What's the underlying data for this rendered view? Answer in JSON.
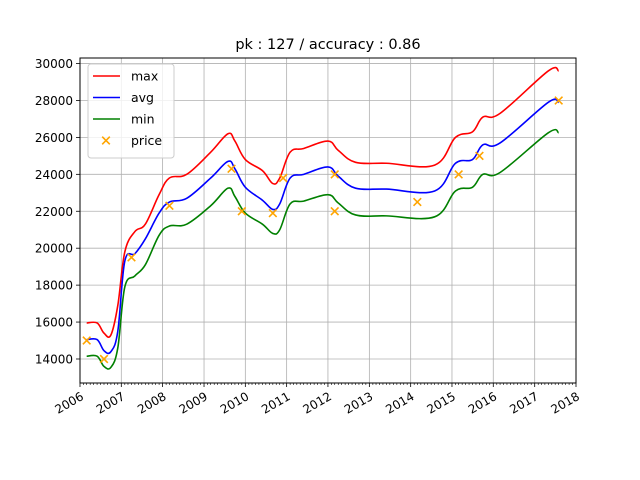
{
  "chart_data": {
    "type": "line",
    "title": "pk : 127 / accuracy : 0.86",
    "xlabel": "",
    "ylabel": "",
    "x_axis": {
      "type": "date",
      "range": [
        "2006-01-01",
        "2018-01-01"
      ],
      "tick_labels": [
        "2006",
        "2007",
        "2008",
        "2009",
        "2010",
        "2011",
        "2012",
        "2013",
        "2014",
        "2015",
        "2016",
        "2017",
        "2018"
      ]
    },
    "y_axis": {
      "range": [
        12700,
        30300
      ],
      "tick_labels": [
        "14000",
        "16000",
        "18000",
        "20000",
        "22000",
        "24000",
        "26000",
        "28000",
        "30000"
      ]
    },
    "grid": true,
    "legend_position": "top-left",
    "colors": {
      "max": "#ff0000",
      "avg": "#0000ff",
      "min": "#008000",
      "price": "#ffa500"
    },
    "series": [
      {
        "name": "max",
        "type": "line",
        "points": [
          [
            "2006-03-01",
            15950
          ],
          [
            "2006-06-01",
            15950
          ],
          [
            "2006-08-01",
            15400
          ],
          [
            "2006-10-01",
            15300
          ],
          [
            "2006-12-01",
            16900
          ],
          [
            "2007-02-01",
            19800
          ],
          [
            "2007-05-01",
            20900
          ],
          [
            "2007-08-01",
            21300
          ],
          [
            "2007-12-01",
            22900
          ],
          [
            "2008-03-01",
            23800
          ],
          [
            "2008-08-01",
            24000
          ],
          [
            "2009-03-01",
            25200
          ],
          [
            "2009-08-01",
            26200
          ],
          [
            "2009-10-01",
            25800
          ],
          [
            "2010-01-01",
            24800
          ],
          [
            "2010-06-01",
            24200
          ],
          [
            "2010-09-01",
            23500
          ],
          [
            "2010-11-01",
            23800
          ],
          [
            "2011-02-01",
            25200
          ],
          [
            "2011-06-01",
            25400
          ],
          [
            "2012-01-01",
            25800
          ],
          [
            "2012-04-01",
            25300
          ],
          [
            "2012-09-01",
            24650
          ],
          [
            "2013-06-01",
            24600
          ],
          [
            "2014-08-01",
            24500
          ],
          [
            "2015-02-01",
            26000
          ],
          [
            "2015-07-01",
            26300
          ],
          [
            "2015-10-01",
            27100
          ],
          [
            "2016-03-01",
            27300
          ],
          [
            "2017-05-01",
            29600
          ],
          [
            "2017-08-01",
            29600
          ]
        ]
      },
      {
        "name": "avg",
        "type": "line",
        "points": [
          [
            "2006-03-01",
            15050
          ],
          [
            "2006-06-01",
            15050
          ],
          [
            "2006-08-01",
            14450
          ],
          [
            "2006-10-01",
            14400
          ],
          [
            "2006-12-01",
            15500
          ],
          [
            "2007-02-01",
            19300
          ],
          [
            "2007-05-01",
            19700
          ],
          [
            "2007-08-01",
            20500
          ],
          [
            "2007-12-01",
            21900
          ],
          [
            "2008-03-01",
            22500
          ],
          [
            "2008-08-01",
            22700
          ],
          [
            "2009-03-01",
            23800
          ],
          [
            "2009-08-01",
            24700
          ],
          [
            "2009-10-01",
            24300
          ],
          [
            "2010-01-01",
            23300
          ],
          [
            "2010-06-01",
            22600
          ],
          [
            "2010-09-01",
            22100
          ],
          [
            "2010-11-01",
            22400
          ],
          [
            "2011-02-01",
            23800
          ],
          [
            "2011-06-01",
            24000
          ],
          [
            "2012-01-01",
            24400
          ],
          [
            "2012-04-01",
            23900
          ],
          [
            "2012-09-01",
            23250
          ],
          [
            "2013-06-01",
            23200
          ],
          [
            "2014-08-01",
            23100
          ],
          [
            "2015-02-01",
            24600
          ],
          [
            "2015-07-01",
            24800
          ],
          [
            "2015-10-01",
            25600
          ],
          [
            "2016-03-01",
            25700
          ],
          [
            "2017-05-01",
            27900
          ],
          [
            "2017-08-01",
            27900
          ]
        ]
      },
      {
        "name": "min",
        "type": "line",
        "points": [
          [
            "2006-03-01",
            14150
          ],
          [
            "2006-06-01",
            14150
          ],
          [
            "2006-08-01",
            13600
          ],
          [
            "2006-10-01",
            13550
          ],
          [
            "2006-12-01",
            14600
          ],
          [
            "2007-02-01",
            17900
          ],
          [
            "2007-05-01",
            18500
          ],
          [
            "2007-08-01",
            19100
          ],
          [
            "2007-12-01",
            20700
          ],
          [
            "2008-03-01",
            21200
          ],
          [
            "2008-08-01",
            21300
          ],
          [
            "2009-03-01",
            22300
          ],
          [
            "2009-08-01",
            23250
          ],
          [
            "2009-10-01",
            22800
          ],
          [
            "2010-01-01",
            21900
          ],
          [
            "2010-06-01",
            21300
          ],
          [
            "2010-09-01",
            20800
          ],
          [
            "2010-11-01",
            21000
          ],
          [
            "2011-02-01",
            22400
          ],
          [
            "2011-06-01",
            22550
          ],
          [
            "2012-01-01",
            22900
          ],
          [
            "2012-04-01",
            22450
          ],
          [
            "2012-09-01",
            21800
          ],
          [
            "2013-06-01",
            21750
          ],
          [
            "2014-08-01",
            21700
          ],
          [
            "2015-02-01",
            23100
          ],
          [
            "2015-07-01",
            23300
          ],
          [
            "2015-10-01",
            24000
          ],
          [
            "2016-03-01",
            24100
          ],
          [
            "2017-05-01",
            26250
          ],
          [
            "2017-08-01",
            26250
          ]
        ]
      },
      {
        "name": "price",
        "type": "scatter",
        "marker": "x",
        "points": [
          [
            "2006-03-01",
            15000
          ],
          [
            "2006-08-01",
            14000
          ],
          [
            "2007-04-01",
            19500
          ],
          [
            "2008-03-01",
            22300
          ],
          [
            "2009-09-01",
            24300
          ],
          [
            "2009-12-01",
            22000
          ],
          [
            "2010-09-01",
            21900
          ],
          [
            "2010-12-01",
            23800
          ],
          [
            "2012-03-01",
            24000
          ],
          [
            "2012-03-01",
            22000
          ],
          [
            "2014-03-01",
            22500
          ],
          [
            "2015-03-01",
            24000
          ],
          [
            "2015-09-01",
            25000
          ],
          [
            "2017-08-01",
            28000
          ]
        ]
      }
    ]
  }
}
